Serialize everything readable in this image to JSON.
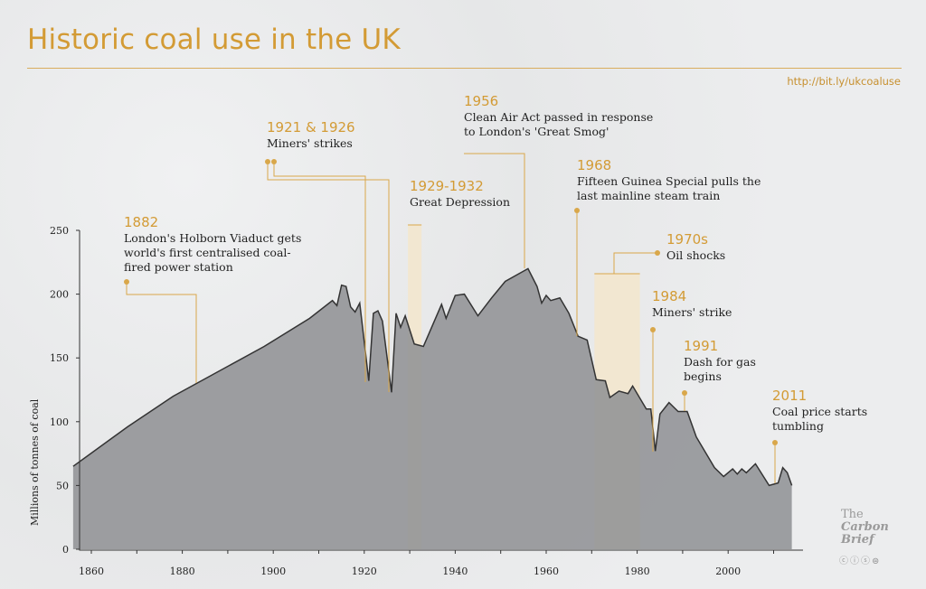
{
  "title": "Historic coal use in the UK",
  "url": "http://bit.ly/ukcoaluse",
  "colors": {
    "accent": "#d39b35",
    "area": "#8e8f93",
    "line": "#333333",
    "shade": "#f3e6cc"
  },
  "logo": {
    "line1": "The",
    "line2": "Carbon",
    "line3": "Brief",
    "license_icons": [
      "cc-icon",
      "by-icon",
      "nc-icon",
      "nd-icon"
    ]
  },
  "chart_data": {
    "type": "area",
    "title": "Historic coal use in the UK",
    "ylabel": "Millions of tonnes of coal",
    "xlabel": "",
    "xlim": [
      1856,
      2016
    ],
    "ylim": [
      0,
      250
    ],
    "xticks": [
      1860,
      1880,
      1900,
      1920,
      1940,
      1960,
      1980,
      2000
    ],
    "yticks": [
      0,
      50,
      100,
      150,
      200,
      250
    ],
    "grid": false,
    "points": [
      [
        1856,
        65
      ],
      [
        1868,
        96
      ],
      [
        1878,
        120
      ],
      [
        1898,
        159
      ],
      [
        1908,
        181
      ],
      [
        1913,
        195
      ],
      [
        1914,
        191
      ],
      [
        1915,
        207
      ],
      [
        1916,
        206
      ],
      [
        1917,
        190
      ],
      [
        1918,
        186
      ],
      [
        1919,
        193
      ],
      [
        1921,
        132
      ],
      [
        1922,
        185
      ],
      [
        1923,
        187
      ],
      [
        1924,
        179
      ],
      [
        1926,
        123
      ],
      [
        1927,
        185
      ],
      [
        1928,
        174
      ],
      [
        1929,
        183
      ],
      [
        1931,
        161
      ],
      [
        1933,
        159
      ],
      [
        1937,
        192
      ],
      [
        1938,
        181
      ],
      [
        1940,
        199
      ],
      [
        1942,
        200
      ],
      [
        1945,
        183
      ],
      [
        1948,
        197
      ],
      [
        1951,
        210
      ],
      [
        1954,
        216
      ],
      [
        1956,
        220
      ],
      [
        1958,
        206
      ],
      [
        1959,
        193
      ],
      [
        1960,
        199
      ],
      [
        1961,
        195
      ],
      [
        1963,
        197
      ],
      [
        1965,
        185
      ],
      [
        1967,
        167
      ],
      [
        1969,
        164
      ],
      [
        1971,
        133
      ],
      [
        1973,
        132
      ],
      [
        1974,
        119
      ],
      [
        1976,
        124
      ],
      [
        1978,
        122
      ],
      [
        1979,
        128
      ],
      [
        1982,
        110
      ],
      [
        1983,
        110
      ],
      [
        1984,
        77
      ],
      [
        1985,
        106
      ],
      [
        1987,
        115
      ],
      [
        1989,
        108
      ],
      [
        1991,
        108
      ],
      [
        1993,
        88
      ],
      [
        1997,
        64
      ],
      [
        1999,
        57
      ],
      [
        2001,
        63
      ],
      [
        2002,
        59
      ],
      [
        2003,
        63
      ],
      [
        2004,
        60
      ],
      [
        2006,
        67
      ],
      [
        2009,
        50
      ],
      [
        2011,
        52
      ],
      [
        2012,
        64
      ],
      [
        2013,
        60
      ],
      [
        2014,
        50
      ]
    ],
    "shaded_periods": [
      {
        "label": "1929-1932",
        "from": 1929,
        "to": 1932
      },
      {
        "label": "1970s",
        "from": 1970,
        "to": 1980
      }
    ],
    "annotations": [
      {
        "year": "1882",
        "text": "London's Holborn Viaduct gets world's first centralised coal-fired power station"
      },
      {
        "year": "1921 & 1926",
        "text": "Miners' strikes"
      },
      {
        "year": "1929-1932",
        "text": "Great Depression"
      },
      {
        "year": "1956",
        "text": "Clean Air Act passed in response to London's 'Great Smog'"
      },
      {
        "year": "1968",
        "text": "Fifteen Guinea Special pulls the last mainline steam train"
      },
      {
        "year": "1970s",
        "text": "Oil shocks"
      },
      {
        "year": "1984",
        "text": "Miners' strike"
      },
      {
        "year": "1991",
        "text": "Dash for gas begins"
      },
      {
        "year": "2011",
        "text": "Coal price starts tumbling"
      }
    ]
  }
}
